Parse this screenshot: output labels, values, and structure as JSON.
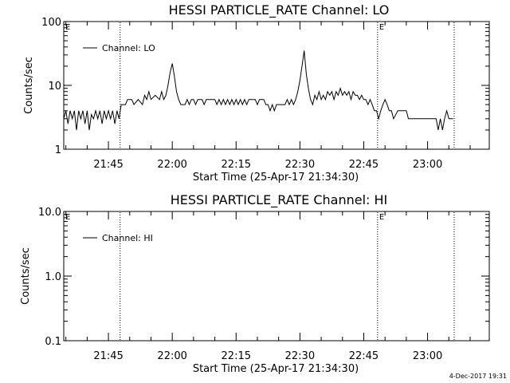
{
  "chart_data": [
    {
      "type": "line",
      "title": "HESSI PARTICLE_RATE Channel: LO",
      "xlabel": "Start Time (25-Apr-17 21:34:30)",
      "ylabel": "Counts/sec",
      "yscale": "log",
      "ylim": [
        1,
        100
      ],
      "yticks": [
        "1",
        "10",
        "100"
      ],
      "xlim_minutes": [
        0,
        100
      ],
      "xticks": [
        "21:45",
        "22:00",
        "22:15",
        "22:30",
        "22:45",
        "23:00"
      ],
      "legend_position": "top-left",
      "grid": false,
      "markers": [
        {
          "time": "21:47:45",
          "label": ""
        },
        {
          "time": "22:48:15",
          "label": "E"
        },
        {
          "time": "23:06:15",
          "label": ""
        }
      ],
      "left_marker_label": "E",
      "series": [
        {
          "name": "Channel: LO",
          "points": [
            [
              "21:34:30",
              3.0
            ],
            [
              "21:35:00",
              4.0
            ],
            [
              "21:35:30",
              2.5
            ],
            [
              "21:36:00",
              4.0
            ],
            [
              "21:36:30",
              3.0
            ],
            [
              "21:37:00",
              4.0
            ],
            [
              "21:37:30",
              2.0
            ],
            [
              "21:38:00",
              4.0
            ],
            [
              "21:38:30",
              3.0
            ],
            [
              "21:39:00",
              4.0
            ],
            [
              "21:39:30",
              2.5
            ],
            [
              "21:40:00",
              4.0
            ],
            [
              "21:40:30",
              2.0
            ],
            [
              "21:41:00",
              3.5
            ],
            [
              "21:41:30",
              3.0
            ],
            [
              "21:42:00",
              4.0
            ],
            [
              "21:42:30",
              3.0
            ],
            [
              "21:43:00",
              4.0
            ],
            [
              "21:43:30",
              2.5
            ],
            [
              "21:44:00",
              4.0
            ],
            [
              "21:44:30",
              3.0
            ],
            [
              "21:45:00",
              4.0
            ],
            [
              "21:45:30",
              3.0
            ],
            [
              "21:46:00",
              4.0
            ],
            [
              "21:46:30",
              2.5
            ],
            [
              "21:47:00",
              4.0
            ],
            [
              "21:47:30",
              3.0
            ],
            [
              "21:48:00",
              5.0
            ],
            [
              "21:49:00",
              5.0
            ],
            [
              "21:49:30",
              6.0
            ],
            [
              "21:50:30",
              6.0
            ],
            [
              "21:51:00",
              5.0
            ],
            [
              "21:52:00",
              6.0
            ],
            [
              "21:53:00",
              5.0
            ],
            [
              "21:53:30",
              7.0
            ],
            [
              "21:54:00",
              6.0
            ],
            [
              "21:54:30",
              8.0
            ],
            [
              "21:55:00",
              6.0
            ],
            [
              "21:56:00",
              7.0
            ],
            [
              "21:57:00",
              6.0
            ],
            [
              "21:57:30",
              8.0
            ],
            [
              "21:58:00",
              6.0
            ],
            [
              "21:58:30",
              7.0
            ],
            [
              "21:59:00",
              10.0
            ],
            [
              "21:59:30",
              16.0
            ],
            [
              "22:00:00",
              22.0
            ],
            [
              "22:00:30",
              14.0
            ],
            [
              "22:01:00",
              8.0
            ],
            [
              "22:01:30",
              6.0
            ],
            [
              "22:02:00",
              5.0
            ],
            [
              "22:03:00",
              5.0
            ],
            [
              "22:03:30",
              6.0
            ],
            [
              "22:04:00",
              5.0
            ],
            [
              "22:04:30",
              6.0
            ],
            [
              "22:05:00",
              6.0
            ],
            [
              "22:05:30",
              5.0
            ],
            [
              "22:06:00",
              6.0
            ],
            [
              "22:07:00",
              6.0
            ],
            [
              "22:07:30",
              5.0
            ],
            [
              "22:08:00",
              6.0
            ],
            [
              "22:10:00",
              6.0
            ],
            [
              "22:10:30",
              5.0
            ],
            [
              "22:11:00",
              6.0
            ],
            [
              "22:11:30",
              5.0
            ],
            [
              "22:12:00",
              6.0
            ],
            [
              "22:12:30",
              5.0
            ],
            [
              "22:13:00",
              6.0
            ],
            [
              "22:13:30",
              5.0
            ],
            [
              "22:14:00",
              6.0
            ],
            [
              "22:14:30",
              5.0
            ],
            [
              "22:15:00",
              6.0
            ],
            [
              "22:15:30",
              5.0
            ],
            [
              "22:16:00",
              6.0
            ],
            [
              "22:16:30",
              5.0
            ],
            [
              "22:17:00",
              6.0
            ],
            [
              "22:17:30",
              5.0
            ],
            [
              "22:18:00",
              6.0
            ],
            [
              "22:19:30",
              6.0
            ],
            [
              "22:20:00",
              5.0
            ],
            [
              "22:20:30",
              6.0
            ],
            [
              "22:21:30",
              6.0
            ],
            [
              "22:22:00",
              5.0
            ],
            [
              "22:22:30",
              5.0
            ],
            [
              "22:23:00",
              4.0
            ],
            [
              "22:23:30",
              5.0
            ],
            [
              "22:24:00",
              4.0
            ],
            [
              "22:24:30",
              5.0
            ],
            [
              "22:26:30",
              5.0
            ],
            [
              "22:27:00",
              6.0
            ],
            [
              "22:27:30",
              5.0
            ],
            [
              "22:28:00",
              6.0
            ],
            [
              "22:28:30",
              5.0
            ],
            [
              "22:29:00",
              6.0
            ],
            [
              "22:29:30",
              8.0
            ],
            [
              "22:30:00",
              12.0
            ],
            [
              "22:30:30",
              20.0
            ],
            [
              "22:31:00",
              35.0
            ],
            [
              "22:31:30",
              15.0
            ],
            [
              "22:32:00",
              9.0
            ],
            [
              "22:32:30",
              6.0
            ],
            [
              "22:33:00",
              5.0
            ],
            [
              "22:33:30",
              7.0
            ],
            [
              "22:34:00",
              6.0
            ],
            [
              "22:34:30",
              8.0
            ],
            [
              "22:35:00",
              6.0
            ],
            [
              "22:35:30",
              7.0
            ],
            [
              "22:36:00",
              6.0
            ],
            [
              "22:36:30",
              8.0
            ],
            [
              "22:37:00",
              7.0
            ],
            [
              "22:37:30",
              8.0
            ],
            [
              "22:38:00",
              6.0
            ],
            [
              "22:38:30",
              8.0
            ],
            [
              "22:39:00",
              7.0
            ],
            [
              "22:39:30",
              9.0
            ],
            [
              "22:40:00",
              7.0
            ],
            [
              "22:40:30",
              8.0
            ],
            [
              "22:41:00",
              7.0
            ],
            [
              "22:41:30",
              8.0
            ],
            [
              "22:42:00",
              6.0
            ],
            [
              "22:42:30",
              8.0
            ],
            [
              "22:43:00",
              7.0
            ],
            [
              "22:43:30",
              7.0
            ],
            [
              "22:44:00",
              6.0
            ],
            [
              "22:44:30",
              7.0
            ],
            [
              "22:45:00",
              6.0
            ],
            [
              "22:45:30",
              6.0
            ],
            [
              "22:46:00",
              5.0
            ],
            [
              "22:46:30",
              6.0
            ],
            [
              "22:47:00",
              5.0
            ],
            [
              "22:47:30",
              4.0
            ],
            [
              "22:48:00",
              4.0
            ],
            [
              "22:48:30",
              3.0
            ],
            [
              "22:49:00",
              4.0
            ],
            [
              "22:49:30",
              5.0
            ],
            [
              "22:50:00",
              6.0
            ],
            [
              "22:50:30",
              5.0
            ],
            [
              "22:51:00",
              4.0
            ],
            [
              "22:51:30",
              4.0
            ],
            [
              "22:52:00",
              3.0
            ],
            [
              "22:53:00",
              4.0
            ],
            [
              "22:54:00",
              4.0
            ],
            [
              "22:55:00",
              4.0
            ],
            [
              "22:55:30",
              3.0
            ],
            [
              "22:57:00",
              3.0
            ],
            [
              "22:58:00",
              3.0
            ],
            [
              "23:00:00",
              3.0
            ],
            [
              "23:02:00",
              3.0
            ],
            [
              "23:02:30",
              2.0
            ],
            [
              "23:03:00",
              3.0
            ],
            [
              "23:03:30",
              2.0
            ],
            [
              "23:04:00",
              3.0
            ],
            [
              "23:04:30",
              4.0
            ],
            [
              "23:05:00",
              3.0
            ],
            [
              "23:06:00",
              3.0
            ]
          ]
        }
      ]
    },
    {
      "type": "line",
      "title": "HESSI PARTICLE_RATE Channel: HI",
      "xlabel": "Start Time (25-Apr-17 21:34:30)",
      "ylabel": "Counts/sec",
      "yscale": "log",
      "ylim": [
        0.1,
        10
      ],
      "yticks": [
        "0.1",
        "1.0",
        "10.0"
      ],
      "xlim_minutes": [
        0,
        100
      ],
      "xticks": [
        "21:45",
        "22:00",
        "22:15",
        "22:30",
        "22:45",
        "23:00"
      ],
      "legend_position": "top-left",
      "grid": false,
      "markers": [
        {
          "time": "21:47:45",
          "label": ""
        },
        {
          "time": "22:48:15",
          "label": "E"
        },
        {
          "time": "23:06:15",
          "label": ""
        }
      ],
      "left_marker_label": "E",
      "series": [
        {
          "name": "Channel: HI",
          "points": []
        }
      ]
    }
  ],
  "footer": {
    "timestamp": "4-Dec-2017 19:31"
  }
}
